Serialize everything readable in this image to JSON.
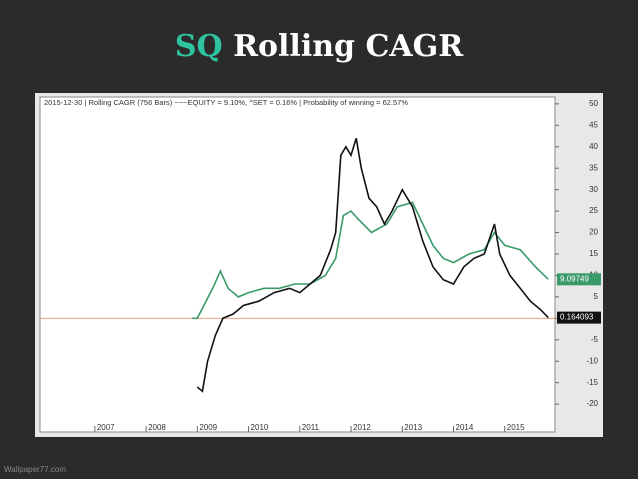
{
  "slide": {
    "title_highlight": "SQ",
    "title": "Rolling CAGR",
    "watermark": "Wallpaper77.com"
  },
  "chart_data": {
    "type": "line",
    "header": "2015-12-30  |  Rolling CAGR (756 Bars)  ~~~EQUITY = 9.10%, ^SET = 0.16%  |  Probability of winning = 62.57%",
    "xlim": [
      2005.93,
      2015.98
    ],
    "xticks": [
      2007,
      2008,
      2009,
      2010,
      2011,
      2012,
      2013,
      2014,
      2015
    ],
    "ylim": [
      -26.5,
      51.6
    ],
    "yticks": [
      50,
      45,
      40,
      35,
      30,
      25,
      20,
      15,
      10,
      5,
      0,
      -5,
      -10,
      -15,
      -20
    ],
    "hline": 0,
    "hline_color": "#e8a080",
    "series": [
      {
        "color": "#3a9a6a",
        "last_label": "9.09749",
        "x": [
          2008.9,
          2009.0,
          2009.3,
          2009.45,
          2009.6,
          2009.8,
          2010.0,
          2010.3,
          2010.6,
          2010.9,
          2011.2,
          2011.5,
          2011.7,
          2011.85,
          2012.0,
          2012.15,
          2012.4,
          2012.7,
          2012.9,
          2013.2,
          2013.4,
          2013.6,
          2013.8,
          2014.0,
          2014.3,
          2014.6,
          2014.8,
          2015.0,
          2015.3,
          2015.6,
          2015.85
        ],
        "values": [
          0,
          0,
          7,
          11,
          7,
          5,
          6,
          7,
          7,
          8,
          8,
          10,
          14,
          24,
          25,
          23,
          20,
          22,
          26,
          27,
          22,
          17,
          14,
          13,
          15,
          16,
          20,
          17,
          16,
          12,
          9.09749
        ]
      },
      {
        "color": "#111111",
        "last_label": "0.164093",
        "x": [
          2009.0,
          2009.1,
          2009.2,
          2009.35,
          2009.5,
          2009.7,
          2009.9,
          2010.2,
          2010.5,
          2010.8,
          2011.0,
          2011.2,
          2011.4,
          2011.6,
          2011.7,
          2011.8,
          2011.9,
          2012.0,
          2012.1,
          2012.2,
          2012.35,
          2012.5,
          2012.65,
          2012.8,
          2013.0,
          2013.2,
          2013.4,
          2013.6,
          2013.8,
          2014.0,
          2014.2,
          2014.4,
          2014.6,
          2014.8,
          2014.9,
          2015.1,
          2015.3,
          2015.5,
          2015.7,
          2015.85
        ],
        "values": [
          -16,
          -17,
          -10,
          -4,
          0,
          1,
          3,
          4,
          6,
          7,
          6,
          8,
          10,
          16,
          20,
          38,
          40,
          38,
          42,
          35,
          28,
          26,
          22,
          25,
          30,
          26,
          18,
          12,
          9,
          8,
          12,
          14,
          15,
          22,
          15,
          10,
          7,
          4,
          2,
          0.164093
        ]
      }
    ]
  }
}
